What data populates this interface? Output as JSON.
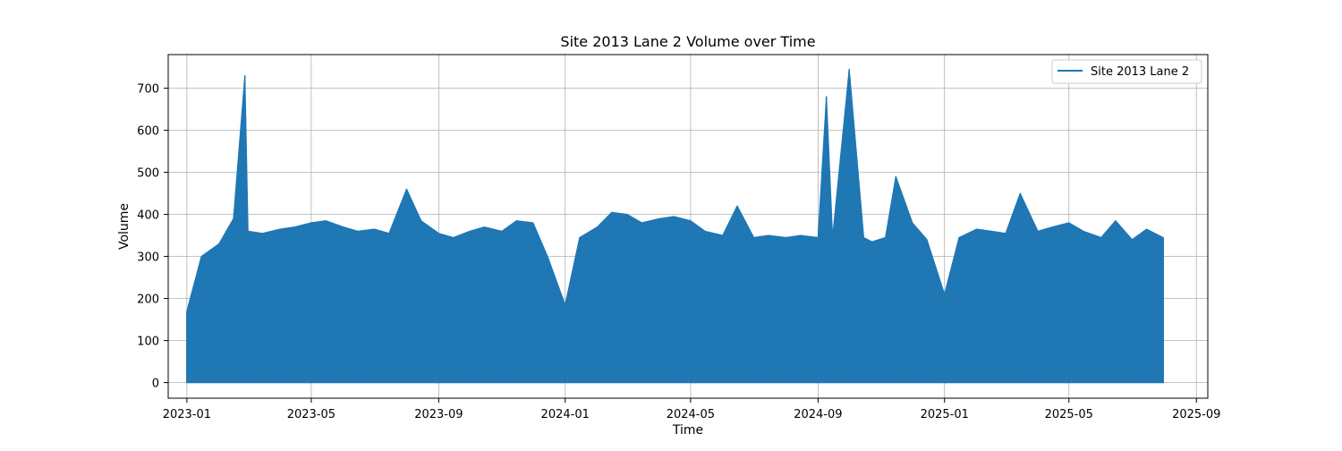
{
  "chart_data": {
    "type": "line",
    "title": "Site 2013 Lane 2 Volume over Time",
    "xlabel": "Time",
    "ylabel": "Volume",
    "xlim": [
      "2022-12-14",
      "2025-09-12"
    ],
    "ylim": [
      -37,
      780
    ],
    "grid": true,
    "legend_position": "top-right",
    "x_ticks": [
      "2023-01",
      "2023-05",
      "2023-09",
      "2024-01",
      "2024-05",
      "2024-09",
      "2025-01",
      "2025-05",
      "2025-09"
    ],
    "y_ticks": [
      0,
      100,
      200,
      300,
      400,
      500,
      600,
      700
    ],
    "series": [
      {
        "name": "Site 2013 Lane 2",
        "color": "#1f77b4",
        "x": [
          "2023-01-01",
          "2023-01-15",
          "2023-02-01",
          "2023-02-15",
          "2023-02-26",
          "2023-03-01",
          "2023-03-15",
          "2023-04-01",
          "2023-04-15",
          "2023-05-01",
          "2023-05-15",
          "2023-06-01",
          "2023-06-15",
          "2023-07-01",
          "2023-07-15",
          "2023-08-01",
          "2023-08-15",
          "2023-09-01",
          "2023-09-15",
          "2023-10-01",
          "2023-10-15",
          "2023-11-01",
          "2023-11-15",
          "2023-12-01",
          "2023-12-15",
          "2024-01-01",
          "2024-01-15",
          "2024-02-01",
          "2024-02-15",
          "2024-03-01",
          "2024-03-15",
          "2024-04-01",
          "2024-04-15",
          "2024-05-01",
          "2024-05-15",
          "2024-06-01",
          "2024-06-15",
          "2024-07-01",
          "2024-07-15",
          "2024-08-01",
          "2024-08-15",
          "2024-09-01",
          "2024-09-09",
          "2024-09-15",
          "2024-10-01",
          "2024-10-15",
          "2024-10-23",
          "2024-11-05",
          "2024-11-15",
          "2024-12-01",
          "2024-12-15",
          "2025-01-01",
          "2025-01-15",
          "2025-02-01",
          "2025-02-15",
          "2025-03-01",
          "2025-03-15",
          "2025-04-01",
          "2025-04-15",
          "2025-05-01",
          "2025-05-15",
          "2025-06-01",
          "2025-06-15",
          "2025-07-01",
          "2025-07-15",
          "2025-07-31"
        ],
        "max": [
          170,
          300,
          330,
          390,
          730,
          360,
          355,
          365,
          370,
          380,
          385,
          370,
          360,
          365,
          355,
          460,
          385,
          355,
          345,
          360,
          370,
          360,
          385,
          380,
          300,
          185,
          345,
          370,
          405,
          400,
          380,
          390,
          395,
          385,
          360,
          350,
          420,
          345,
          350,
          345,
          350,
          345,
          680,
          345,
          745,
          345,
          335,
          345,
          490,
          380,
          340,
          210,
          345,
          365,
          360,
          355,
          450,
          360,
          370,
          380,
          360,
          345,
          385,
          340,
          365,
          345
        ],
        "min": [
          0,
          0,
          0,
          0,
          0,
          0,
          0,
          0,
          0,
          0,
          0,
          0,
          0,
          0,
          0,
          0,
          0,
          0,
          0,
          0,
          0,
          0,
          0,
          0,
          0,
          0,
          0,
          0,
          0,
          0,
          0,
          0,
          0,
          0,
          0,
          0,
          0,
          0,
          0,
          0,
          0,
          0,
          0,
          0,
          0,
          0,
          0,
          0,
          0,
          0,
          0,
          0,
          0,
          0,
          0,
          0,
          0,
          0,
          0,
          0,
          0,
          0,
          0,
          0,
          0,
          0
        ]
      }
    ]
  }
}
